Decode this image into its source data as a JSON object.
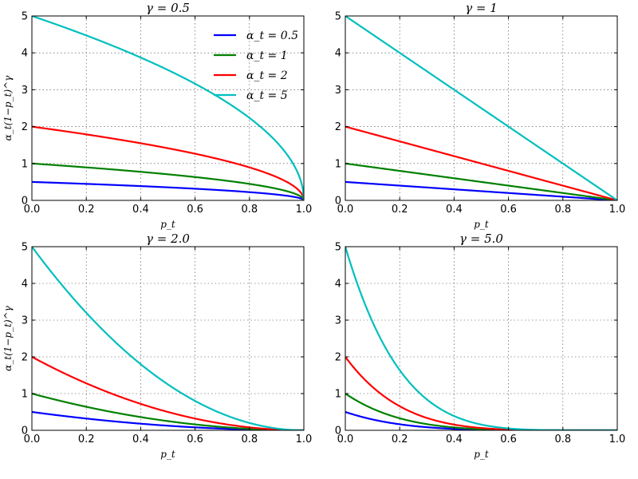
{
  "chart_data": [
    {
      "type": "line",
      "gamma": 0.5,
      "title": "γ = 0.5",
      "xlabel": "p_t",
      "ylabel": "α_t(1−p_t)^γ",
      "xlim": [
        0,
        1
      ],
      "ylim": [
        0,
        5
      ],
      "xticks": [
        "0.0",
        "0.2",
        "0.4",
        "0.6",
        "0.8",
        "1.0"
      ],
      "yticks": [
        "0",
        "1",
        "2",
        "3",
        "4",
        "5"
      ],
      "grid": true,
      "legend": {
        "placement": "top-right",
        "entries": [
          "α_t = 0.5",
          "α_t = 1",
          "α_t = 2",
          "α_t = 5"
        ]
      },
      "series": [
        {
          "name": "α_t = 0.5",
          "alpha": 0.5,
          "color": "#0000ff"
        },
        {
          "name": "α_t = 1",
          "alpha": 1,
          "color": "#008000"
        },
        {
          "name": "α_t = 2",
          "alpha": 2,
          "color": "#ff0000"
        },
        {
          "name": "α_t = 5",
          "alpha": 5,
          "color": "#00bfbf"
        }
      ]
    },
    {
      "type": "line",
      "gamma": 1,
      "title": "γ = 1",
      "xlabel": "p_t",
      "ylabel": "",
      "xlim": [
        0,
        1
      ],
      "ylim": [
        0,
        5
      ],
      "xticks": [
        "0.0",
        "0.2",
        "0.4",
        "0.6",
        "0.8",
        "1.0"
      ],
      "yticks": [
        "0",
        "1",
        "2",
        "3",
        "4",
        "5"
      ],
      "grid": true,
      "series": [
        {
          "alpha": 0.5,
          "color": "#0000ff"
        },
        {
          "alpha": 1,
          "color": "#008000"
        },
        {
          "alpha": 2,
          "color": "#ff0000"
        },
        {
          "alpha": 5,
          "color": "#00bfbf"
        }
      ]
    },
    {
      "type": "line",
      "gamma": 2,
      "title": "γ = 2.0",
      "xlabel": "p_t",
      "ylabel": "α_t(1−p_t)^γ",
      "xlim": [
        0,
        1
      ],
      "ylim": [
        0,
        5
      ],
      "xticks": [
        "0.0",
        "0.2",
        "0.4",
        "0.6",
        "0.8",
        "1.0"
      ],
      "yticks": [
        "0",
        "1",
        "2",
        "3",
        "4",
        "5"
      ],
      "grid": true,
      "series": [
        {
          "alpha": 0.5,
          "color": "#0000ff"
        },
        {
          "alpha": 1,
          "color": "#008000"
        },
        {
          "alpha": 2,
          "color": "#ff0000"
        },
        {
          "alpha": 5,
          "color": "#00bfbf"
        }
      ]
    },
    {
      "type": "line",
      "gamma": 5,
      "title": "γ = 5.0",
      "xlabel": "p_t",
      "ylabel": "",
      "xlim": [
        0,
        1
      ],
      "ylim": [
        0,
        5
      ],
      "xticks": [
        "0.0",
        "0.2",
        "0.4",
        "0.6",
        "0.8",
        "1.0"
      ],
      "yticks": [
        "0",
        "1",
        "2",
        "3",
        "4",
        "5"
      ],
      "grid": true,
      "series": [
        {
          "alpha": 0.5,
          "color": "#0000ff"
        },
        {
          "alpha": 1,
          "color": "#008000"
        },
        {
          "alpha": 2,
          "color": "#ff0000"
        },
        {
          "alpha": 5,
          "color": "#00bfbf"
        }
      ]
    }
  ]
}
